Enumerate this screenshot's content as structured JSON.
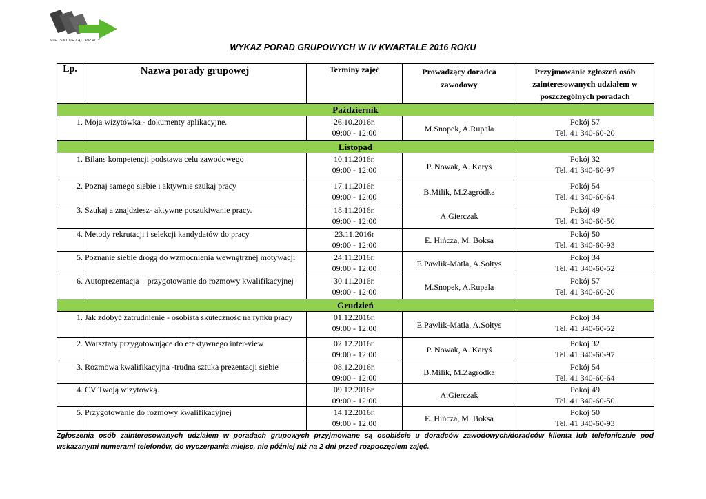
{
  "logo": {
    "text": "Miejski Urząd Pracy",
    "colors": {
      "dark": "#4a4a4a",
      "arrow": "#5cb82e"
    }
  },
  "title": "WYKAZ PORAD GRUPOWYCH W IV KWARTALE 2016 ROKU",
  "headers": [
    "Lp.",
    "Nazwa porady grupowej",
    "Terminy zajęć",
    "Prowadzący doradca zawodowy",
    "Przyjmowanie zgłoszeń osób zainteresowanych udziałem w poszczególnych poradach"
  ],
  "month_color": "#92d050",
  "sections": [
    {
      "month": "Październik",
      "rows": [
        {
          "lp": "1.",
          "name": "Moja wizytówka - dokumenty aplikacyjne.",
          "date": "26.10.2016r.",
          "time": "09:00 - 12:00",
          "advisor": "M.Snopek, A.Rupala",
          "room": "Pokój 57",
          "tel": "Tel. 41 340-60-20"
        }
      ]
    },
    {
      "month": "Listopad",
      "rows": [
        {
          "lp": "1.",
          "name": "Bilans kompetencji podstawa celu zawodowego",
          "date": "10.11.2016r.",
          "time": "09:00 - 12:00",
          "advisor": "P. Nowak, A. Karyś",
          "room": "Pokój 32",
          "tel": "Tel. 41 340-60-97"
        },
        {
          "lp": "2.",
          "name": "Poznaj samego siebie i aktywnie szukaj pracy",
          "date": "17.11.2016r.",
          "time": "09:00 - 12:00",
          "advisor": "B.Milik, M.Zagródka",
          "room": "Pokój 54",
          "tel": "Tel. 41 340-60-64"
        },
        {
          "lp": "3.",
          "name": "Szukaj a znajdziesz- aktywne poszukiwanie pracy.",
          "date": "18.11.2016r.",
          "time": "09:00 - 12:00",
          "advisor": "A.Gierczak",
          "room": "Pokój 49",
          "tel": "Tel. 41 340-60-50"
        },
        {
          "lp": "4.",
          "name": "Metody rekrutacji i selekcji kandydatów do pracy",
          "date": "23.11.2016r",
          "time": "09:00 - 12:00",
          "advisor": "E. Hińcza, M. Boksa",
          "room": "Pokój 50",
          "tel": "Tel. 41 340-60-93"
        },
        {
          "lp": "5.",
          "name": "Poznanie siebie drogą do wzmocnienia wewnętrznej motywacji",
          "date": "24.11.2016r.",
          "time": "09:00 - 12:00",
          "advisor": "E.Pawlik-Matla, A.Sołtys",
          "room": "Pokój 34",
          "tel": "Tel. 41 340-60-52"
        },
        {
          "lp": "6.",
          "name": "Autoprezentacja – przygotowanie do rozmowy kwalifikacyjnej",
          "date": "30.11.2016r.",
          "time": "09:00 - 12:00",
          "advisor": "M.Snopek, A.Rupala",
          "room": "Pokój 57",
          "tel": "Tel. 41 340-60-20"
        }
      ]
    },
    {
      "month": "Grudzień",
      "rows": [
        {
          "lp": "1.",
          "name": "Jak zdobyć zatrudnienie - osobista skuteczność na rynku pracy",
          "date": "01.12.2016r.",
          "time": "09:00 - 12:00",
          "advisor": "E.Pawlik-Matla, A.Sołtys",
          "room": "Pokój 34",
          "tel": "Tel. 41 340-60-52"
        },
        {
          "lp": "2.",
          "name": "Warsztaty przygotowujące do efektywnego inter-view",
          "date": "02.12.2016r.",
          "time": "09:00 - 12:00",
          "advisor": "P. Nowak, A. Karyś",
          "room": "Pokój 32",
          "tel": "Tel. 41 340-60-97"
        },
        {
          "lp": "3.",
          "name": "Rozmowa kwalifikacyjna -trudna sztuka prezentacji siebie",
          "date": "08.12.2016r.",
          "time": "09:00 - 12:00",
          "advisor": "B.Milik, M.Zagródka",
          "room": "Pokój 54",
          "tel": "Tel. 41 340-60-64"
        },
        {
          "lp": "4.",
          "name": "CV Twoją wizytówką.",
          "date": "09.12.2016r.",
          "time": "09:00 - 12:00",
          "advisor": "A.Gierczak",
          "room": "Pokój 49",
          "tel": "Tel. 41 340-60-50"
        },
        {
          "lp": "5.",
          "name": "Przygotowanie do rozmowy kwalifikacyjnej",
          "date": "14.12.2016r.",
          "time": "09:00 - 12:00",
          "advisor": "E. Hińcza, M. Boksa",
          "room": "Pokój 50",
          "tel": "Tel. 41 340-60-93"
        }
      ]
    }
  ],
  "footer": "Zgłoszenia osób zainteresowanych udziałem w poradach grupowych przyjmowane są osobiście u doradców zawodowych/doradców klienta lub telefonicznie pod wskazanymi numerami telefonów, do wyczerpania miejsc, nie później niż na 2 dni przed rozpoczęciem zajęć."
}
